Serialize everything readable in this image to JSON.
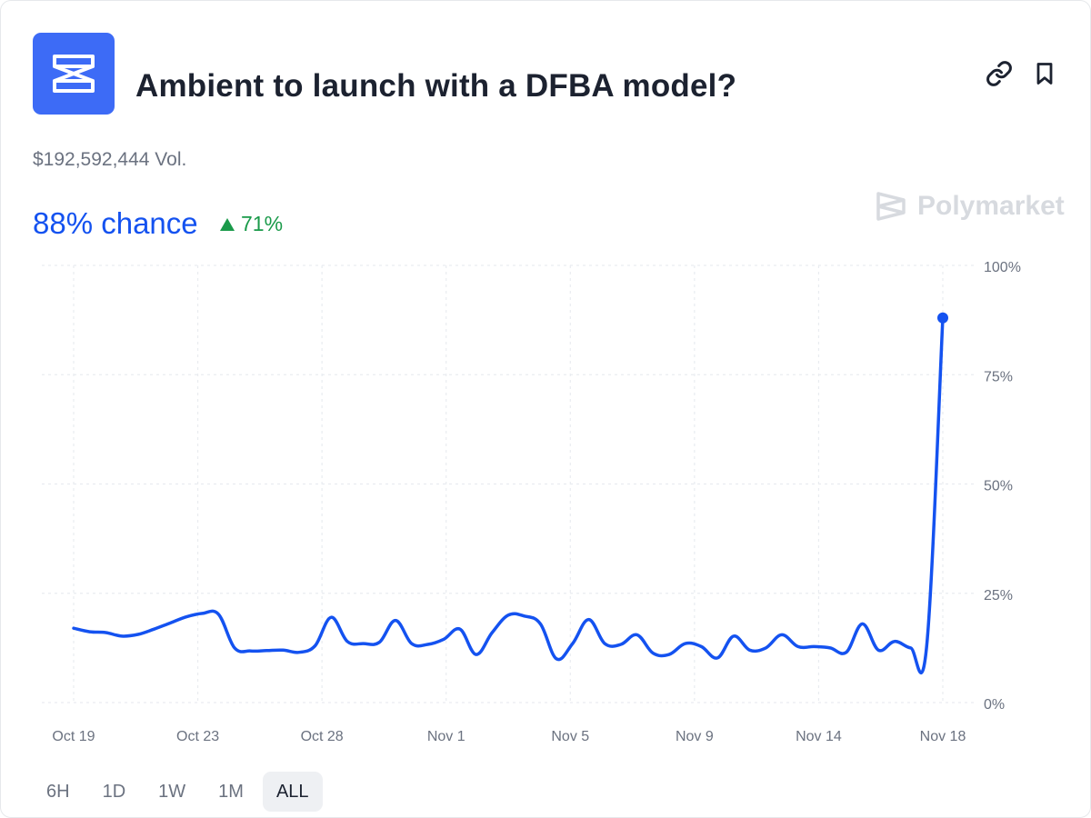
{
  "market": {
    "title": "Ambient to launch with a DFBA model?",
    "volume": "$192,592,444 Vol.",
    "chance": "88% chance",
    "change": "71%",
    "brand": "Polymarket"
  },
  "colors": {
    "accent": "#1452f0",
    "icon_bg": "#3d6bf6",
    "up": "#1a9a4a",
    "muted_text": "#6b7280",
    "grid": "#e9ecf0"
  },
  "icons": {
    "market": "ambient-logo-icon",
    "link": "link-icon",
    "bookmark": "bookmark-icon",
    "change": "triangle-up-icon",
    "brand": "polymarket-logo-icon"
  },
  "ranges": {
    "items": [
      "6H",
      "1D",
      "1W",
      "1M",
      "ALL"
    ],
    "active": "ALL"
  },
  "chart_data": {
    "type": "line",
    "title": "",
    "xlabel": "",
    "ylabel": "",
    "ylim": [
      0,
      100
    ],
    "y_unit": "%",
    "y_ticks": [
      0,
      25,
      50,
      75,
      100
    ],
    "y_tick_labels": [
      "0%",
      "25%",
      "50%",
      "75%",
      "100%"
    ],
    "x_tick_labels": [
      "Oct 19",
      "Oct 23",
      "Oct 28",
      "Nov 1",
      "Nov 5",
      "Nov 9",
      "Nov 14",
      "Nov 18"
    ],
    "grid": true,
    "series": [
      {
        "values": [
          17.0,
          16.2,
          16.0,
          15.2,
          15.6,
          16.8,
          18.2,
          19.6,
          20.4,
          20.2,
          12.5,
          11.8,
          11.9,
          12.0,
          11.5,
          13.0,
          19.5,
          14.0,
          13.5,
          13.8,
          18.8,
          13.5,
          13.3,
          14.5,
          16.8,
          11.0,
          16.0,
          20.0,
          19.8,
          18.0,
          10.0,
          13.5,
          19.0,
          13.5,
          13.3,
          15.5,
          11.3,
          11.0,
          13.5,
          12.8,
          10.2,
          15.2,
          12.0,
          12.5,
          15.5,
          12.8,
          12.8,
          12.5,
          11.5,
          18.0,
          12.0,
          14.0,
          12.5,
          13.0,
          88.0
        ]
      }
    ]
  }
}
